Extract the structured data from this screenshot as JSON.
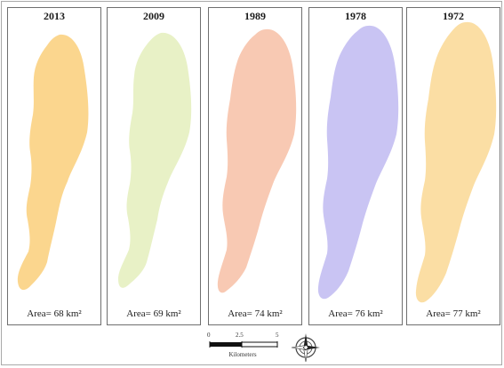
{
  "panels": [
    {
      "year": "2013",
      "area": "Area= 68 km²",
      "fill": "#fbd68e"
    },
    {
      "year": "2009",
      "area": "Area= 69 km²",
      "fill": "#e8f1c6"
    },
    {
      "year": "1989",
      "area": "Area= 74 km²",
      "fill": "#f8c9b3"
    },
    {
      "year": "1978",
      "area": "Area= 76 km²",
      "fill": "#c9c4f3"
    },
    {
      "year": "1972",
      "area": "Area= 77 km²",
      "fill": "#fbdea4"
    }
  ],
  "scale": {
    "ticks": [
      "0",
      "2.5",
      "5"
    ],
    "unit": "Kilometers"
  },
  "north_arrow": {
    "icon": "compass-rose-icon"
  }
}
